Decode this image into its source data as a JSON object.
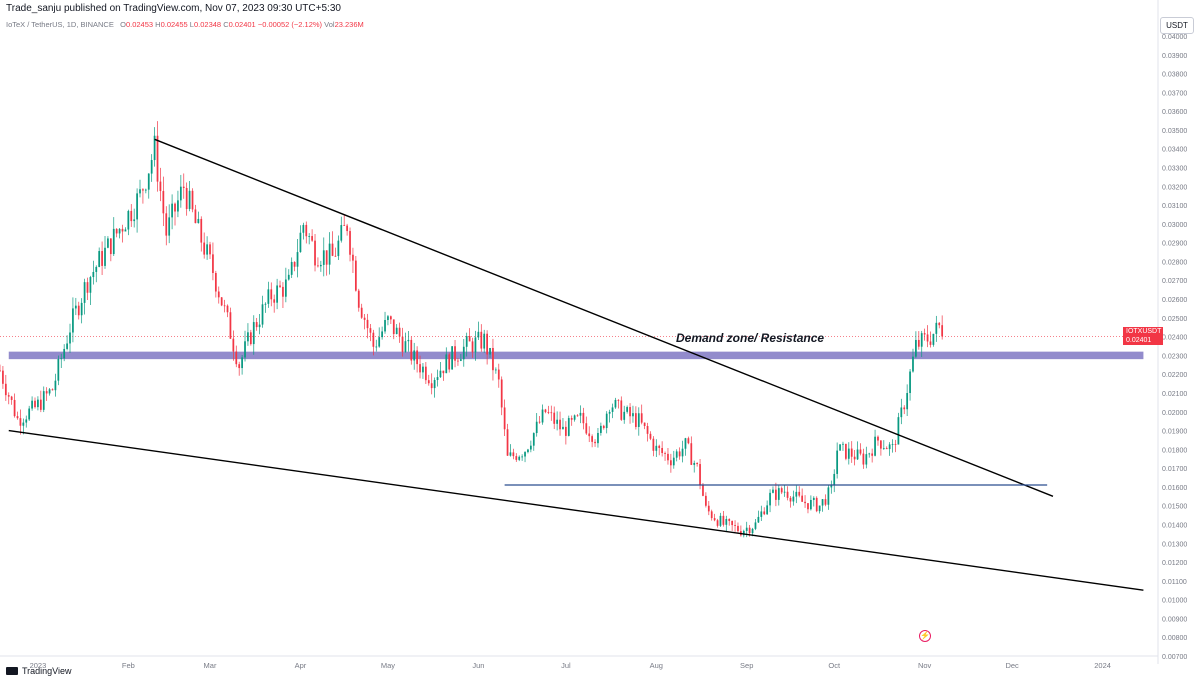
{
  "header": {
    "published_by": "Trade_sanju published on TradingView.com, Nov 07, 2023 09:30 UTC+5:30",
    "symbol_line": "IoTeX / TetherUS, 1D, BINANCE",
    "ohlc": {
      "o_label": "O",
      "o": "0.02453",
      "h_label": "H",
      "h": "0.02455",
      "l_label": "L",
      "l": "0.02348",
      "c_label": "C",
      "c": "0.02401",
      "change": "−0.00052 (−2.12%)"
    },
    "vol_label": "Vol",
    "vol": "23.236M",
    "currency": "USDT"
  },
  "price_tag": {
    "symbol": "IOTXUSDT",
    "price": "0.02401",
    "countdown": "19:59:49"
  },
  "annotation": {
    "zone_text": "Demand zone/ Resistance"
  },
  "footer": {
    "brand": "TradingView"
  },
  "colors": {
    "up": "#089981",
    "down": "#f23645",
    "zone": "#8c85c9",
    "support": "#2a4d8f",
    "trendline": "#000000"
  },
  "chart_data": {
    "type": "candlestick",
    "y_axis": {
      "min": 0.007,
      "max": 0.04,
      "step": 0.001,
      "side": "right"
    },
    "y_tick_labels": [
      "0.04000",
      "0.03900",
      "0.03800",
      "0.03700",
      "0.03600",
      "0.03500",
      "0.03400",
      "0.03300",
      "0.03200",
      "0.03100",
      "0.03000",
      "0.02900",
      "0.02800",
      "0.02700",
      "0.02600",
      "0.02500",
      "0.02400",
      "0.02300",
      "0.02200",
      "0.02100",
      "0.02000",
      "0.01900",
      "0.01800",
      "0.01700",
      "0.01600",
      "0.01500",
      "0.01400",
      "0.01300",
      "0.01200",
      "0.01100",
      "0.01000",
      "0.00900",
      "0.00800",
      "0.00700"
    ],
    "x_axis": {
      "start": "2022-12-19",
      "end": "2024-01-20"
    },
    "x_tick_labels": [
      {
        "label": "2023",
        "date": "2023-01-01"
      },
      {
        "label": "Feb",
        "date": "2023-02-01"
      },
      {
        "label": "Mar",
        "date": "2023-03-01"
      },
      {
        "label": "Apr",
        "date": "2023-04-01"
      },
      {
        "label": "May",
        "date": "2023-05-01"
      },
      {
        "label": "Jun",
        "date": "2023-06-01"
      },
      {
        "label": "Jul",
        "date": "2023-07-01"
      },
      {
        "label": "Aug",
        "date": "2023-08-01"
      },
      {
        "label": "Sep",
        "date": "2023-09-01"
      },
      {
        "label": "Oct",
        "date": "2023-10-01"
      },
      {
        "label": "Nov",
        "date": "2023-11-01"
      },
      {
        "label": "Dec",
        "date": "2023-12-01"
      },
      {
        "label": "2024",
        "date": "2024-01-01"
      }
    ],
    "close_path": [
      [
        "2022-12-19",
        0.0222
      ],
      [
        "2022-12-25",
        0.0196
      ],
      [
        "2022-12-31",
        0.0202
      ],
      [
        "2023-01-06",
        0.0212
      ],
      [
        "2023-01-12",
        0.0245
      ],
      [
        "2023-01-18",
        0.027
      ],
      [
        "2023-01-24",
        0.0285
      ],
      [
        "2023-01-30",
        0.03
      ],
      [
        "2023-02-05",
        0.0315
      ],
      [
        "2023-02-10",
        0.034
      ],
      [
        "2023-02-14",
        0.0295
      ],
      [
        "2023-02-20",
        0.032
      ],
      [
        "2023-02-24",
        0.03
      ],
      [
        "2023-03-02",
        0.0275
      ],
      [
        "2023-03-07",
        0.0248
      ],
      [
        "2023-03-11",
        0.0225
      ],
      [
        "2023-03-16",
        0.0245
      ],
      [
        "2023-03-22",
        0.0262
      ],
      [
        "2023-03-28",
        0.0268
      ],
      [
        "2023-04-02",
        0.03
      ],
      [
        "2023-04-06",
        0.0285
      ],
      [
        "2023-04-12",
        0.0282
      ],
      [
        "2023-04-17",
        0.03
      ],
      [
        "2023-04-21",
        0.026
      ],
      [
        "2023-04-26",
        0.0235
      ],
      [
        "2023-05-01",
        0.0248
      ],
      [
        "2023-05-05",
        0.024
      ],
      [
        "2023-05-10",
        0.0228
      ],
      [
        "2023-05-16",
        0.0218
      ],
      [
        "2023-05-22",
        0.0228
      ],
      [
        "2023-05-28",
        0.0235
      ],
      [
        "2023-06-03",
        0.0238
      ],
      [
        "2023-06-08",
        0.0215
      ],
      [
        "2023-06-11",
        0.0175
      ],
      [
        "2023-06-17",
        0.018
      ],
      [
        "2023-06-24",
        0.02
      ],
      [
        "2023-06-30",
        0.019
      ],
      [
        "2023-07-06",
        0.0196
      ],
      [
        "2023-07-12",
        0.0185
      ],
      [
        "2023-07-16",
        0.0205
      ],
      [
        "2023-07-20",
        0.02
      ],
      [
        "2023-07-26",
        0.0195
      ],
      [
        "2023-08-01",
        0.018
      ],
      [
        "2023-08-06",
        0.0175
      ],
      [
        "2023-08-11",
        0.0182
      ],
      [
        "2023-08-15",
        0.017
      ],
      [
        "2023-08-18",
        0.0148
      ],
      [
        "2023-08-24",
        0.014
      ],
      [
        "2023-08-30",
        0.0137
      ],
      [
        "2023-09-04",
        0.014
      ],
      [
        "2023-09-09",
        0.0155
      ],
      [
        "2023-09-14",
        0.0158
      ],
      [
        "2023-09-20",
        0.0152
      ],
      [
        "2023-09-26",
        0.015
      ],
      [
        "2023-09-30",
        0.0158
      ],
      [
        "2023-10-02",
        0.018
      ],
      [
        "2023-10-06",
        0.0178
      ],
      [
        "2023-10-11",
        0.0175
      ],
      [
        "2023-10-16",
        0.0185
      ],
      [
        "2023-10-21",
        0.018
      ],
      [
        "2023-10-25",
        0.0205
      ],
      [
        "2023-10-29",
        0.0235
      ],
      [
        "2023-11-03",
        0.024
      ],
      [
        "2023-11-06",
        0.0245
      ],
      [
        "2023-11-07",
        0.02401
      ]
    ],
    "trendlines": [
      {
        "from": [
          "2023-02-10",
          0.0345
        ],
        "to": [
          "2023-12-15",
          0.0155
        ],
        "label": ""
      },
      {
        "from": [
          "2022-12-22",
          0.019
        ],
        "to": [
          "2024-01-15",
          0.0105
        ],
        "label": ""
      }
    ],
    "support_line": {
      "from": [
        "2023-06-10",
        0.0161
      ],
      "to": [
        "2023-12-13",
        0.0161
      ]
    },
    "zone": {
      "from": "2022-12-22",
      "to": "2024-01-15",
      "low": 0.0228,
      "high": 0.0232,
      "label": "Demand zone/ Resistance"
    },
    "last_price": 0.02401,
    "grid": false
  }
}
